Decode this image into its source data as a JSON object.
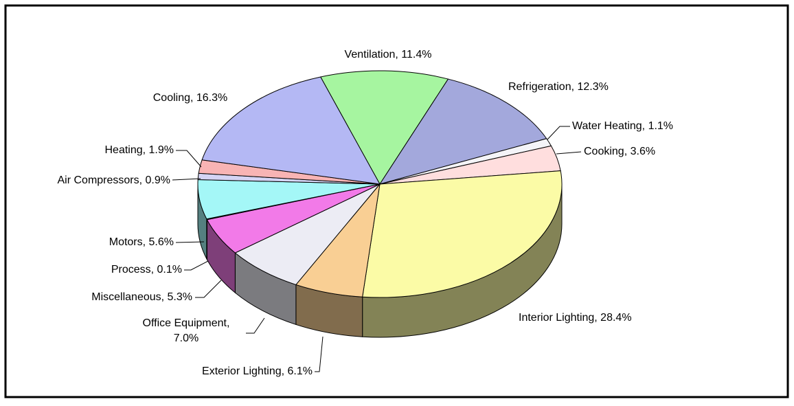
{
  "chart_data": {
    "type": "pie3d",
    "values": [
      11.4,
      12.3,
      1.1,
      3.6,
      28.4,
      6.1,
      7.0,
      5.3,
      0.1,
      5.6,
      0.9,
      1.9,
      16.3
    ],
    "value_labels": [
      "Ventilation, 11.4%",
      "Refrigeration, 12.3%",
      "Water Heating, 1.1%",
      "Cooking, 3.6%",
      "Interior Lighting, 28.4%",
      "Exterior Lighting, 6.1%",
      "Office Equipment,\n7.0%",
      "Miscellaneous, 5.3%",
      "Process, 0.1%",
      "Motors, 5.6%",
      "Air Compressors, 0.9%",
      "Heating, 1.9%",
      "Cooling, 16.3%"
    ],
    "colors": [
      "#a6f5a0",
      "#a3a8dc",
      "#f4f4f8",
      "#ffdede",
      "#fbfba6",
      "#f9cf94",
      "#ececf4",
      "#f27ae8",
      "#3f7a7a",
      "#a4f7f7",
      "#d4d4f4",
      "#f8b4b4",
      "#b4b8f4"
    ]
  }
}
